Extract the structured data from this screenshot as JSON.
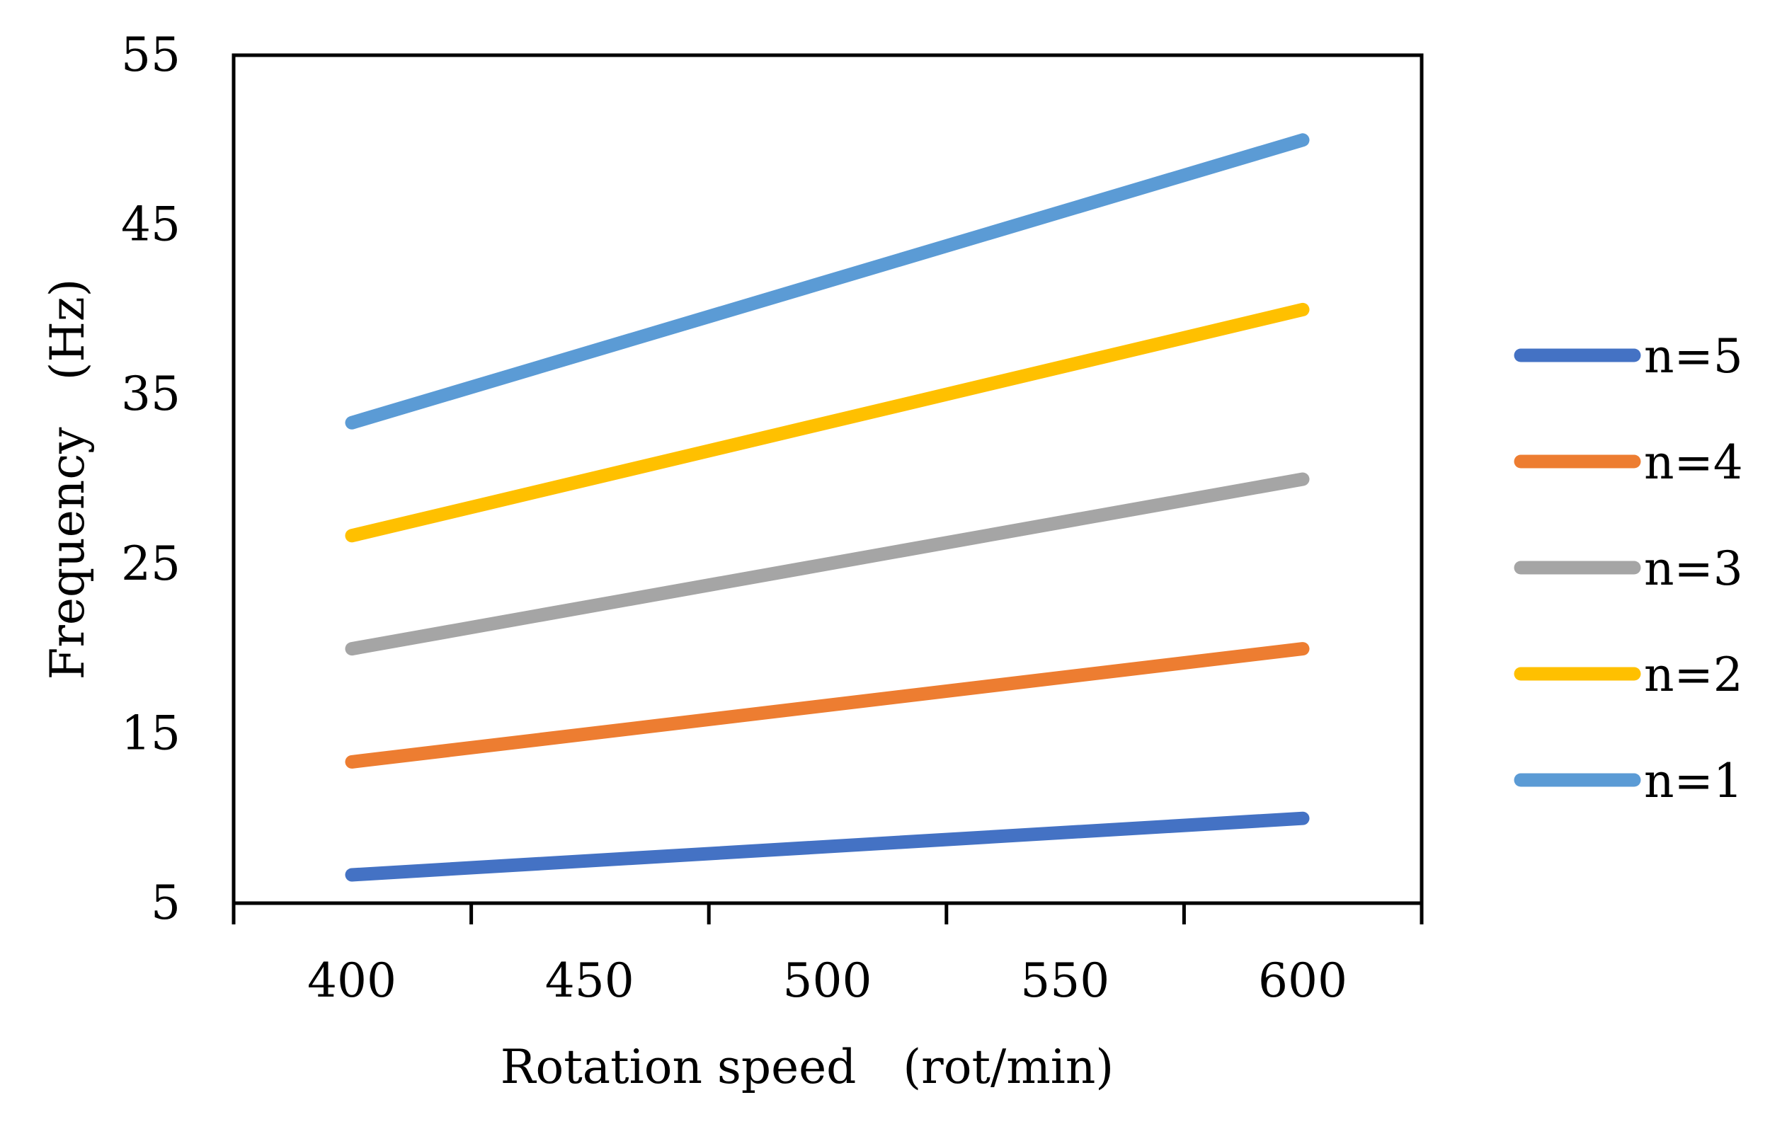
{
  "chart_data": {
    "type": "line",
    "title": "",
    "xlabel": "Rotation speed　(rot/min)",
    "ylabel": "Frequency　(Hz)",
    "categories": [
      "400",
      "450",
      "500",
      "550",
      "600"
    ],
    "x": [
      400,
      600
    ],
    "x_tick_labels": [
      "400",
      "450",
      "500",
      "550",
      "600"
    ],
    "ylim": [
      5,
      55
    ],
    "y_ticks": [
      5,
      15,
      25,
      35,
      45,
      55
    ],
    "y_tick_labels": [
      "5",
      "15",
      "25",
      "35",
      "45",
      "55"
    ],
    "grid": false,
    "legend_position": "right",
    "series": [
      {
        "name": "n=5",
        "color": "#4472C4",
        "values": [
          6.67,
          10
        ]
      },
      {
        "name": "n=4",
        "color": "#ED7D31",
        "values": [
          13.33,
          20
        ]
      },
      {
        "name": "n=3",
        "color": "#A5A5A5",
        "values": [
          20,
          30
        ]
      },
      {
        "name": "n=2",
        "color": "#FFC000",
        "values": [
          26.67,
          40
        ]
      },
      {
        "name": "n=1",
        "color": "#5B9BD5",
        "values": [
          33.33,
          50
        ]
      }
    ]
  }
}
